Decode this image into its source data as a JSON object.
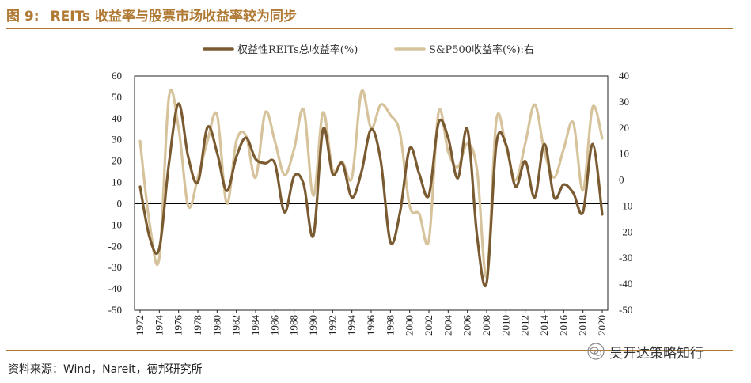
{
  "figure": {
    "number": "图 9:",
    "title": "REITs 收益率与股票市场收益率较为同步"
  },
  "source": "资料来源：Wind，Nareit，德邦研究所",
  "watermark": "吴开达策略知行",
  "colors": {
    "accent": "#b07a34",
    "reits_line": "#7a5a30",
    "sp500_line": "#d6c39c"
  },
  "chart_data": {
    "type": "line",
    "title": "",
    "x": [
      1972,
      1973,
      1974,
      1975,
      1976,
      1977,
      1978,
      1979,
      1980,
      1981,
      1982,
      1983,
      1984,
      1985,
      1986,
      1987,
      1988,
      1989,
      1990,
      1991,
      1992,
      1993,
      1994,
      1995,
      1996,
      1997,
      1998,
      1999,
      2000,
      2001,
      2002,
      2003,
      2004,
      2005,
      2006,
      2007,
      2008,
      2009,
      2010,
      2011,
      2012,
      2013,
      2014,
      2015,
      2016,
      2017,
      2018,
      2019,
      2020
    ],
    "x_tick_labels": [
      "1972",
      "1974",
      "1976",
      "1978",
      "1980",
      "1982",
      "1984",
      "1986",
      "1988",
      "1990",
      "1992",
      "1994",
      "1996",
      "1998",
      "2000",
      "2002",
      "2004",
      "2006",
      "2008",
      "2010",
      "2012",
      "2014",
      "2016",
      "2018",
      "2020"
    ],
    "left_axis": {
      "ylim": [
        -50,
        60
      ],
      "ticks": [
        60,
        50,
        40,
        30,
        20,
        10,
        0,
        -10,
        -20,
        -30,
        -40,
        -50
      ]
    },
    "right_axis": {
      "ylim": [
        -50,
        40
      ],
      "ticks": [
        40,
        30,
        20,
        10,
        0,
        -10,
        -20,
        -30,
        -40,
        -50
      ]
    },
    "series": [
      {
        "name": "权益性REITs总收益率(%)",
        "axis": "left",
        "values": [
          8,
          -16,
          -21,
          19,
          47,
          22,
          10,
          36,
          24,
          6,
          22,
          31,
          21,
          19,
          19,
          -4,
          13,
          9,
          -15,
          35,
          14,
          19,
          3,
          15,
          35,
          20,
          -18,
          -4,
          26,
          14,
          4,
          38,
          31,
          12,
          35,
          -15,
          -37,
          28,
          28,
          8,
          20,
          3,
          28,
          3,
          9,
          5,
          -4,
          28,
          -5
        ]
      },
      {
        "name": "S&P500收益率(%):右",
        "axis": "right",
        "values": [
          15,
          -17,
          -30,
          32,
          20,
          -10,
          1,
          15,
          25,
          -9,
          15,
          17,
          1,
          26,
          15,
          2,
          12,
          27,
          -6,
          26,
          4,
          7,
          1,
          34,
          20,
          29,
          25,
          18,
          -10,
          -13,
          -23,
          26,
          11,
          5,
          14,
          4,
          -37,
          23,
          13,
          0,
          14,
          29,
          11,
          1,
          12,
          22,
          -4,
          28,
          16
        ]
      }
    ]
  }
}
